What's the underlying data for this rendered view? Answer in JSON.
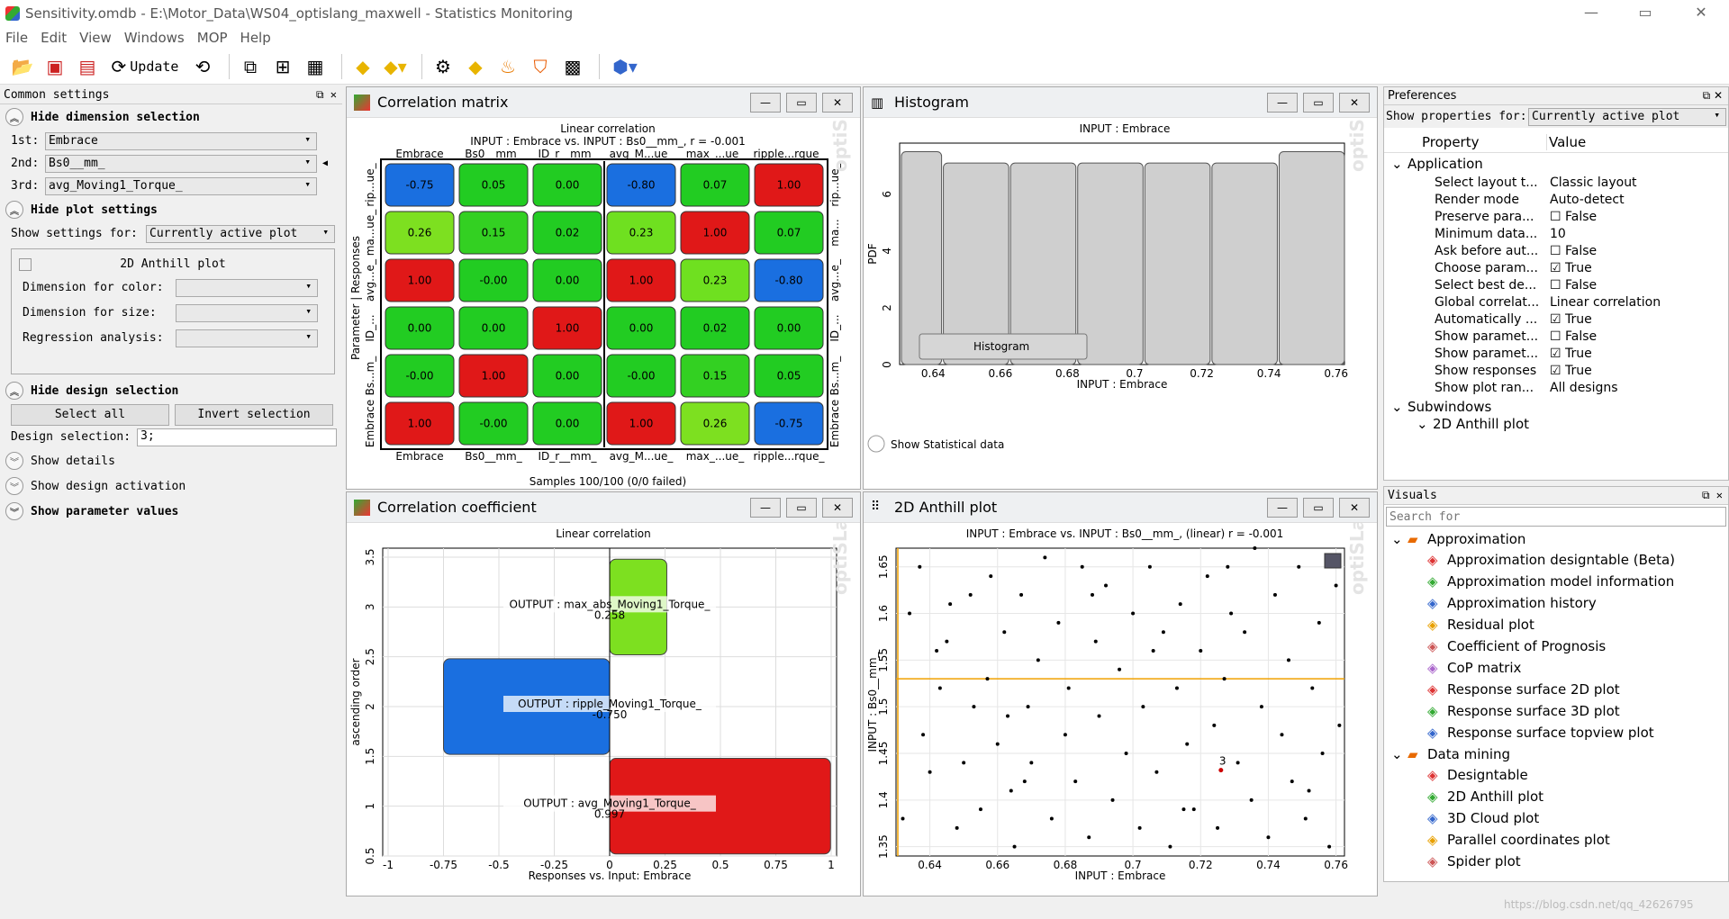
{
  "window": {
    "title": "Sensitivity.omdb - E:\\Motor_Data\\WS04_optislang_maxwell - Statistics Monitoring",
    "minimize": "—",
    "maximize": "▭",
    "close": "✕"
  },
  "menu": [
    "File",
    "Edit",
    "View",
    "Windows",
    "MOP",
    "Help"
  ],
  "toolbar": {
    "update_label": "Update"
  },
  "common": {
    "header": "Common settings",
    "hide_dimension": "Hide dimension selection",
    "dim1_label": "1st:",
    "dim1": "Embrace",
    "dim2_label": "2nd:",
    "dim2": "Bs0__mm_",
    "dim3_label": "3rd:",
    "dim3": "avg_Moving1_Torque_",
    "hide_plot": "Hide plot settings",
    "show_settings_label": "Show settings for:",
    "show_settings_value": "Currently active plot",
    "plot_box_title": "2D Anthill plot",
    "color_label": "Dimension for color:",
    "size_label": "Dimension for size:",
    "regression_label": "Regression analysis:",
    "hide_design": "Hide design selection",
    "select_all": "Select all",
    "invert_selection": "Invert selection",
    "design_sel_label": "Design selection:",
    "design_sel_value": "3;",
    "show_details": "Show details",
    "show_activation": "Show design activation",
    "show_param": "Show parameter values"
  },
  "corr_matrix": {
    "title": "Correlation matrix",
    "subtitle1": "Linear correlation",
    "subtitle2": "INPUT : Embrace vs. INPUT : Bs0__mm_, r = -0.001",
    "cols": [
      "Embrace",
      "Bs0__mm_",
      "ID_r__mm_",
      "avg_M...ue_",
      "max_...ue_",
      "ripple...rque_"
    ],
    "rows_left": [
      "rip...ue_",
      "ma...ue_",
      "avg...e_",
      "ID_...",
      "Bs...m_",
      "Embrace"
    ],
    "rows_right": [
      "rip...ue_",
      "ma...",
      "avg...e_",
      "ID_...",
      "Bs...m_",
      "Embrace"
    ],
    "ylabel": "Parameter | Responses",
    "footer": "Samples 100/100 (0/0 failed)",
    "values": [
      [
        "-0.75",
        "0.05",
        "0.00",
        "-0.80",
        "0.07",
        "1.00"
      ],
      [
        "0.26",
        "0.15",
        "0.02",
        "0.23",
        "1.00",
        "0.07"
      ],
      [
        "1.00",
        "-0.00",
        "0.00",
        "1.00",
        "0.23",
        "-0.80"
      ],
      [
        "0.00",
        "0.00",
        "1.00",
        "0.00",
        "0.02",
        "0.00"
      ],
      [
        "-0.00",
        "1.00",
        "0.00",
        "-0.00",
        "0.15",
        "0.05"
      ],
      [
        "1.00",
        "-0.00",
        "0.00",
        "1.00",
        "0.26",
        "-0.75"
      ]
    ],
    "colors": [
      [
        "#1a6fe0",
        "#22cc22",
        "#22cc22",
        "#1a6fe0",
        "#22cc22",
        "#e01818"
      ],
      [
        "#7de020",
        "#33d022",
        "#22cc22",
        "#6fe020",
        "#e01818",
        "#22cc22"
      ],
      [
        "#e01818",
        "#22cc22",
        "#22cc22",
        "#e01818",
        "#6fe020",
        "#1a6fe0"
      ],
      [
        "#22cc22",
        "#22cc22",
        "#e01818",
        "#22cc22",
        "#22cc22",
        "#22cc22"
      ],
      [
        "#22cc22",
        "#e01818",
        "#22cc22",
        "#22cc22",
        "#33d022",
        "#22cc22"
      ],
      [
        "#e01818",
        "#22cc22",
        "#22cc22",
        "#e01818",
        "#7de020",
        "#1a6fe0"
      ]
    ]
  },
  "histogram": {
    "title": "Histogram",
    "subtitle": "INPUT : Embrace",
    "xlabel": "INPUT : Embrace",
    "ylabel": "PDF",
    "legend": "Histogram",
    "show_stat": "Show Statistical data",
    "xticks": [
      "0.64",
      "0.66",
      "0.68",
      "0.7",
      "0.72",
      "0.74",
      "0.76"
    ],
    "yticks": [
      "0",
      "2",
      "4",
      "6"
    ],
    "chart_data": {
      "type": "bar",
      "x_bins": [
        [
          0.63,
          0.6425
        ],
        [
          0.6425,
          0.6625
        ],
        [
          0.6625,
          0.6825
        ],
        [
          0.6825,
          0.7025
        ],
        [
          0.7025,
          0.7225
        ],
        [
          0.7225,
          0.7425
        ],
        [
          0.7425,
          0.7625
        ]
      ],
      "values": [
        7.5,
        7.1,
        7.1,
        7.1,
        7.1,
        7.1,
        7.5
      ],
      "xlim": [
        0.63,
        0.7625
      ],
      "ylim": [
        0,
        7.8
      ]
    }
  },
  "corr_coef": {
    "title": "Correlation coefficient",
    "subtitle": "Linear correlation",
    "xlabel": "Responses vs. Input: Embrace",
    "ylabel": "ascending order",
    "xticks": [
      "-1",
      "-0.75",
      "-0.5",
      "-0.25",
      "0",
      "0.25",
      "0.5",
      "0.75",
      "1"
    ],
    "yticks": [
      "0.5",
      "1",
      "1.5",
      "2",
      "2.5",
      "3",
      "3.5"
    ],
    "chart_data": {
      "type": "bar",
      "orientation": "horizontal",
      "categories": [
        "OUTPUT : avg_Moving1_Torque_",
        "OUTPUT : ripple_Moving1_Torque_",
        "OUTPUT : max_abs_Moving1_Torque_"
      ],
      "values": [
        0.997,
        -0.75,
        0.258
      ],
      "value_labels": [
        "0.997",
        "-0.750",
        "0.258"
      ],
      "positions": [
        1,
        2,
        3
      ],
      "xlim": [
        -1,
        1
      ],
      "ylim": [
        0.5,
        3.5
      ],
      "colors": [
        "#e01818",
        "#1a6fe0",
        "#7de020"
      ]
    }
  },
  "anthill": {
    "title": "2D Anthill plot",
    "subtitle": "INPUT : Embrace vs. INPUT : Bs0__mm_, (linear) r = -0.001",
    "xlabel": "INPUT : Embrace",
    "ylabel": "INPUT : Bs0__mm_",
    "xticks": [
      "0.64",
      "0.66",
      "0.68",
      "0.7",
      "0.72",
      "0.74",
      "0.76"
    ],
    "yticks": [
      "1.35",
      "1.4",
      "1.45",
      "1.5",
      "1.55",
      "1.6",
      "1.65"
    ],
    "selected_label": "3",
    "chart_data": {
      "type": "scatter",
      "xlim": [
        0.63,
        0.7625
      ],
      "ylim": [
        1.34,
        1.67
      ],
      "selected": [
        0.726,
        1.432
      ],
      "points": [
        [
          0.632,
          1.38
        ],
        [
          0.634,
          1.6
        ],
        [
          0.637,
          1.65
        ],
        [
          0.638,
          1.47
        ],
        [
          0.64,
          1.43
        ],
        [
          0.642,
          1.56
        ],
        [
          0.643,
          1.52
        ],
        [
          0.645,
          1.57
        ],
        [
          0.648,
          1.37
        ],
        [
          0.65,
          1.44
        ],
        [
          0.652,
          1.62
        ],
        [
          0.653,
          1.5
        ],
        [
          0.655,
          1.39
        ],
        [
          0.657,
          1.53
        ],
        [
          0.658,
          1.64
        ],
        [
          0.66,
          1.46
        ],
        [
          0.662,
          1.58
        ],
        [
          0.664,
          1.41
        ],
        [
          0.665,
          1.35
        ],
        [
          0.667,
          1.62
        ],
        [
          0.669,
          1.5
        ],
        [
          0.67,
          1.44
        ],
        [
          0.672,
          1.55
        ],
        [
          0.674,
          1.66
        ],
        [
          0.676,
          1.38
        ],
        [
          0.678,
          1.59
        ],
        [
          0.68,
          1.47
        ],
        [
          0.681,
          1.52
        ],
        [
          0.683,
          1.42
        ],
        [
          0.685,
          1.65
        ],
        [
          0.687,
          1.36
        ],
        [
          0.689,
          1.57
        ],
        [
          0.69,
          1.49
        ],
        [
          0.692,
          1.63
        ],
        [
          0.694,
          1.4
        ],
        [
          0.696,
          1.54
        ],
        [
          0.698,
          1.45
        ],
        [
          0.7,
          1.6
        ],
        [
          0.702,
          1.37
        ],
        [
          0.703,
          1.5
        ],
        [
          0.705,
          1.65
        ],
        [
          0.707,
          1.43
        ],
        [
          0.709,
          1.58
        ],
        [
          0.711,
          1.35
        ],
        [
          0.713,
          1.52
        ],
        [
          0.714,
          1.61
        ],
        [
          0.716,
          1.46
        ],
        [
          0.718,
          1.39
        ],
        [
          0.72,
          1.56
        ],
        [
          0.722,
          1.64
        ],
        [
          0.724,
          1.48
        ],
        [
          0.725,
          1.37
        ],
        [
          0.727,
          1.53
        ],
        [
          0.729,
          1.6
        ],
        [
          0.731,
          1.44
        ],
        [
          0.733,
          1.58
        ],
        [
          0.735,
          1.4
        ],
        [
          0.736,
          1.67
        ],
        [
          0.738,
          1.5
        ],
        [
          0.74,
          1.36
        ],
        [
          0.742,
          1.62
        ],
        [
          0.744,
          1.47
        ],
        [
          0.746,
          1.55
        ],
        [
          0.747,
          1.42
        ],
        [
          0.749,
          1.65
        ],
        [
          0.751,
          1.38
        ],
        [
          0.753,
          1.52
        ],
        [
          0.755,
          1.59
        ],
        [
          0.756,
          1.45
        ],
        [
          0.758,
          1.35
        ],
        [
          0.76,
          1.63
        ],
        [
          0.761,
          1.48
        ],
        [
          0.646,
          1.61
        ],
        [
          0.668,
          1.42
        ],
        [
          0.688,
          1.62
        ],
        [
          0.706,
          1.56
        ],
        [
          0.728,
          1.65
        ],
        [
          0.752,
          1.41
        ],
        [
          0.663,
          1.49
        ],
        [
          0.715,
          1.39
        ]
      ]
    }
  },
  "prefs": {
    "header": "Preferences",
    "show_label": "Show properties for:",
    "show_value": "Currently active plot",
    "col_property": "Property",
    "col_value": "Value",
    "group_application": "Application",
    "group_subwindows": "Subwindows",
    "sub_item": "2D Anthill plot",
    "rows": [
      {
        "p": "Select layout t...",
        "v": "Classic layout",
        "cb": ""
      },
      {
        "p": "Render mode",
        "v": "Auto-detect",
        "cb": ""
      },
      {
        "p": "Preserve para...",
        "v": "False",
        "cb": "off"
      },
      {
        "p": "Minimum data...",
        "v": "10",
        "cb": ""
      },
      {
        "p": "Ask before aut...",
        "v": "False",
        "cb": "off"
      },
      {
        "p": "Choose param...",
        "v": "True",
        "cb": "on"
      },
      {
        "p": "Select best de...",
        "v": "False",
        "cb": "off"
      },
      {
        "p": "Global correlat...",
        "v": "Linear correlation",
        "cb": ""
      },
      {
        "p": "Automatically ...",
        "v": "True",
        "cb": "on"
      },
      {
        "p": "Show paramet...",
        "v": "False",
        "cb": "off"
      },
      {
        "p": "Show paramet...",
        "v": "True",
        "cb": "on"
      },
      {
        "p": "Show responses",
        "v": "True",
        "cb": "on"
      },
      {
        "p": "Show plot ran...",
        "v": "All designs",
        "cb": ""
      }
    ]
  },
  "visuals": {
    "header": "Visuals",
    "search_placeholder": "Search for",
    "group1": "Approximation",
    "items1": [
      "Approximation designtable (Beta)",
      "Approximation model information",
      "Approximation history",
      "Residual plot",
      "Coefficient of Prognosis",
      "CoP matrix",
      "Response surface 2D plot",
      "Response surface 3D plot",
      "Response surface topview plot"
    ],
    "group2": "Data mining",
    "items2": [
      "Designtable",
      "2D Anthill plot",
      "3D Cloud plot",
      "Parallel coordinates plot",
      "Spider plot"
    ]
  },
  "watermark": "optiSLang",
  "url_watermark": "https://blog.csdn.net/qq_42626795"
}
